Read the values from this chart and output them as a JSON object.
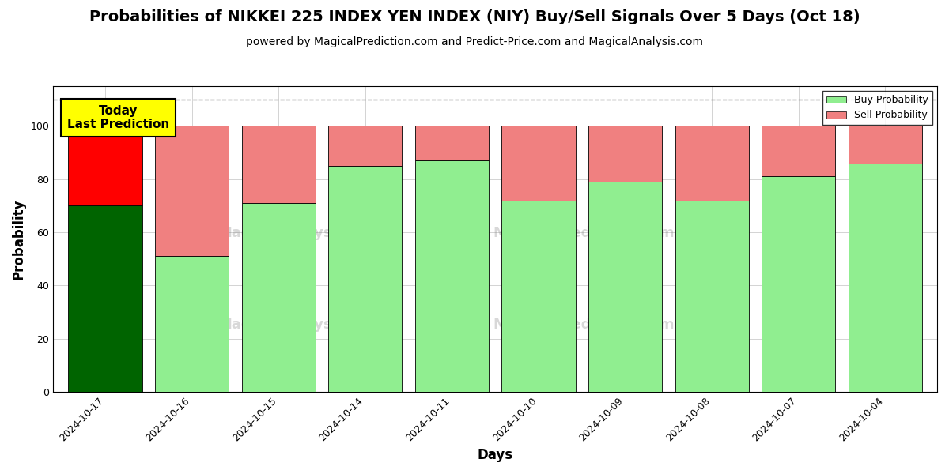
{
  "title": "Probabilities of NIKKEI 225 INDEX YEN INDEX (NIY) Buy/Sell Signals Over 5 Days (Oct 18)",
  "subtitle": "powered by MagicalPrediction.com and Predict-Price.com and MagicalAnalysis.com",
  "xlabel": "Days",
  "ylabel": "Probability",
  "dates": [
    "2024-10-17",
    "2024-10-16",
    "2024-10-15",
    "2024-10-14",
    "2024-10-11",
    "2024-10-10",
    "2024-10-09",
    "2024-10-08",
    "2024-10-07",
    "2024-10-04"
  ],
  "buy_values": [
    70,
    51,
    71,
    85,
    87,
    72,
    79,
    72,
    81,
    86
  ],
  "sell_values": [
    30,
    49,
    29,
    15,
    13,
    28,
    21,
    28,
    19,
    14
  ],
  "today_buy_color": "#006400",
  "today_sell_color": "#FF0000",
  "other_buy_color": "#90EE90",
  "other_sell_color": "#F08080",
  "today_label_bg": "#FFFF00",
  "today_label_text": "Today\nLast Prediction",
  "legend_buy_label": "Buy Probability",
  "legend_sell_label": "Sell Probability",
  "ylim": [
    0,
    115
  ],
  "yticks": [
    0,
    20,
    40,
    60,
    80,
    100
  ],
  "dashed_line_y": 110,
  "bar_width": 0.85,
  "fig_width": 12.0,
  "fig_height": 6.0,
  "title_fontsize": 14,
  "subtitle_fontsize": 10,
  "axis_label_fontsize": 12,
  "tick_fontsize": 9,
  "background_color": "#ffffff"
}
